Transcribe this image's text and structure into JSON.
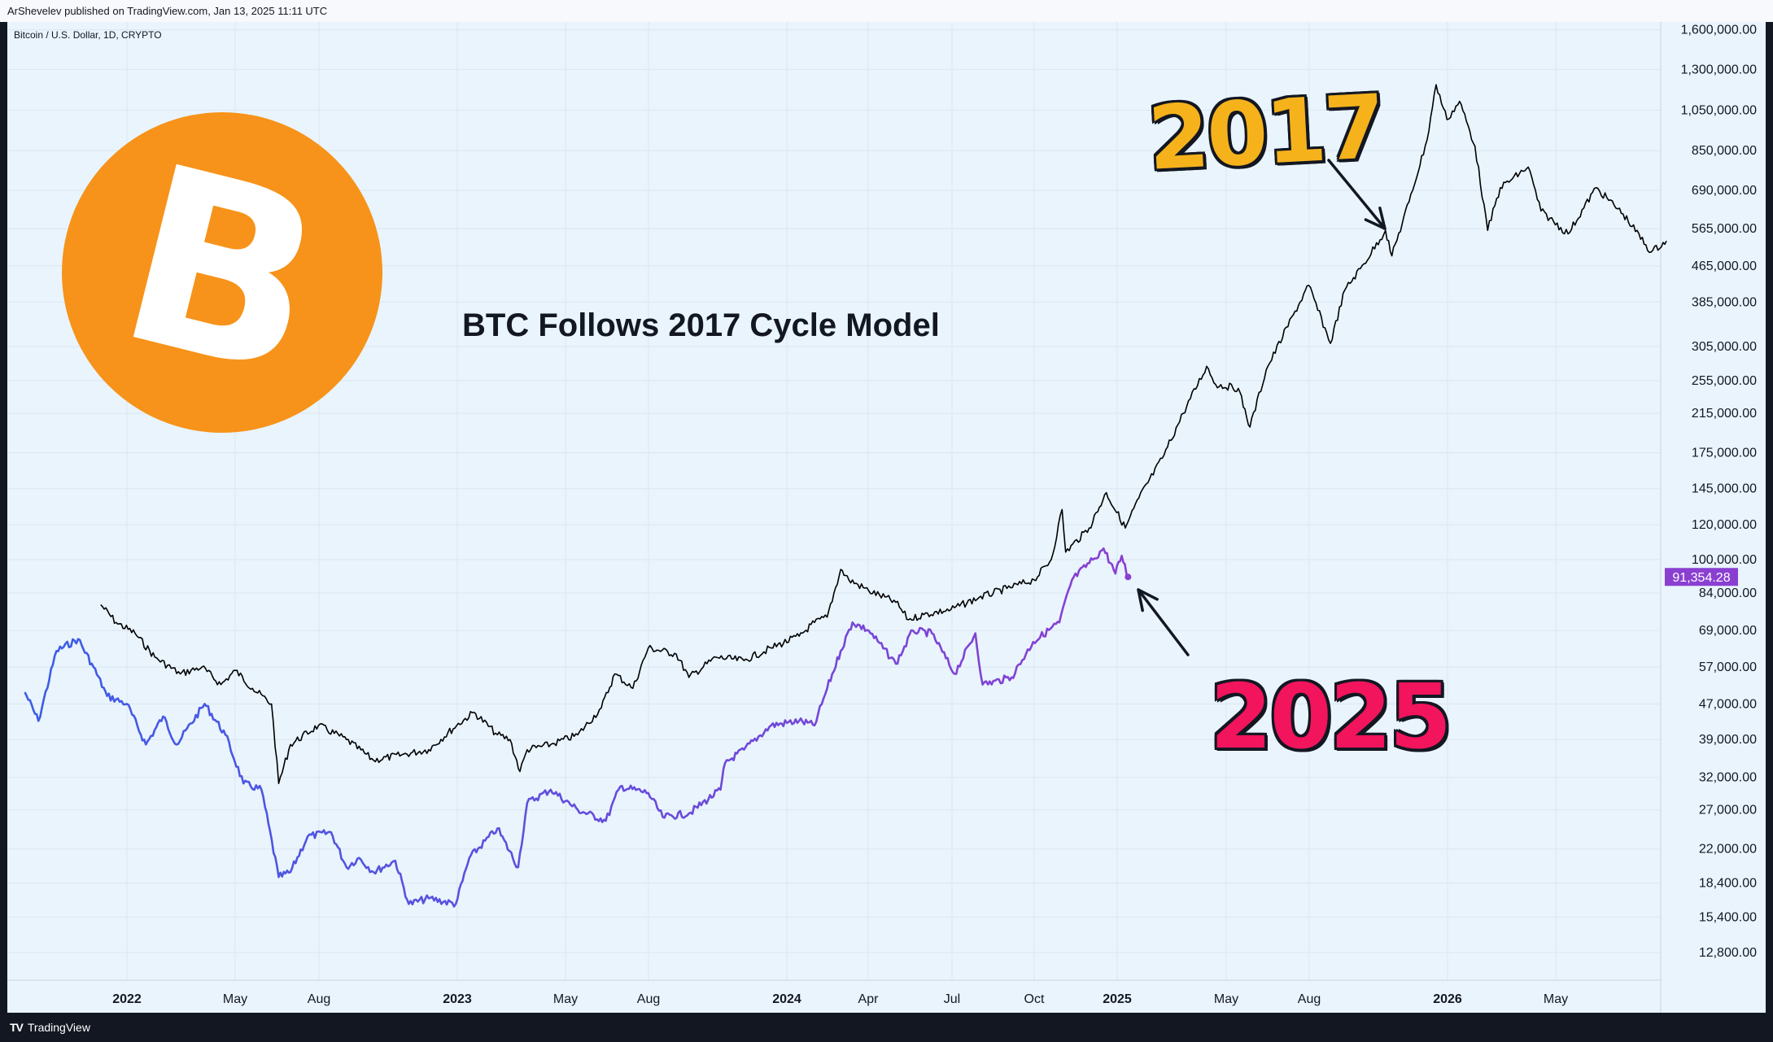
{
  "header": {
    "published_by": "ArShevelev published on TradingView.com, Jan 13, 2025 11:11 UTC"
  },
  "symbol": "Bitcoin / U.S. Dollar, 1D, CRYPTO",
  "footer": {
    "brand": "TradingView"
  },
  "annotations": {
    "title": "BTC Follows 2017 Cycle Model",
    "label_2017": "2017",
    "label_2025": "2025"
  },
  "colors": {
    "background": "#e9f4fd",
    "series_2017": "#000000",
    "series_2025_start": "#3d5ce6",
    "series_2025_end": "#8a3fd1",
    "price_badge": "#8a3fd1",
    "label_2017": "#f5b21b",
    "label_2025": "#f2145c",
    "btc_logo": "#f7931a"
  },
  "icons": {
    "logo": "bitcoin-logo-icon",
    "brand": "tradingview-logo-icon"
  },
  "chart_data": {
    "type": "line",
    "scale": "log",
    "title": "BTC Follows 2017 Cycle Model",
    "y_ticks": [
      "1,600,000.00",
      "1,300,000.00",
      "1,050,000.00",
      "850,000.00",
      "690,000.00",
      "565,000.00",
      "465,000.00",
      "385,000.00",
      "305,000.00",
      "255,000.00",
      "215,000.00",
      "175,000.00",
      "145,000.00",
      "120,000.00",
      "100,000.00",
      "84,000.00",
      "69,000.00",
      "57,000.00",
      "47,000.00",
      "39,000.00",
      "32,000.00",
      "27,000.00",
      "22,000.00",
      "18,400.00",
      "15,400.00",
      "12,800.00"
    ],
    "x_ticks": [
      {
        "label": "2022",
        "year": true
      },
      {
        "label": "May",
        "year": false
      },
      {
        "label": "Aug",
        "year": false
      },
      {
        "label": "2023",
        "year": true
      },
      {
        "label": "May",
        "year": false
      },
      {
        "label": "Aug",
        "year": false
      },
      {
        "label": "2024",
        "year": true
      },
      {
        "label": "Apr",
        "year": false
      },
      {
        "label": "Jul",
        "year": false
      },
      {
        "label": "Oct",
        "year": false
      },
      {
        "label": "2025",
        "year": true
      },
      {
        "label": "May",
        "year": false
      },
      {
        "label": "Aug",
        "year": false
      },
      {
        "label": "2026",
        "year": true
      },
      {
        "label": "May",
        "year": false
      }
    ],
    "last_price": "91,354.28",
    "series": [
      {
        "name": "2017",
        "points": [
          [
            "2021-12-03",
            79000
          ],
          [
            "2021-12-20",
            72000
          ],
          [
            "2022-01-10",
            68000
          ],
          [
            "2022-02-01",
            60000
          ],
          [
            "2022-03-01",
            55000
          ],
          [
            "2022-03-25",
            57000
          ],
          [
            "2022-04-15",
            52000
          ],
          [
            "2022-05-01",
            56000
          ],
          [
            "2022-05-20",
            51000
          ],
          [
            "2022-06-10",
            47000
          ],
          [
            "2022-06-18",
            31000
          ],
          [
            "2022-07-01",
            38000
          ],
          [
            "2022-08-01",
            42000
          ],
          [
            "2022-09-01",
            39000
          ],
          [
            "2022-10-01",
            35000
          ],
          [
            "2022-11-01",
            36000
          ],
          [
            "2022-12-01",
            37000
          ],
          [
            "2023-01-01",
            42000
          ],
          [
            "2023-01-20",
            45000
          ],
          [
            "2023-02-15",
            40000
          ],
          [
            "2023-03-01",
            39000
          ],
          [
            "2023-03-12",
            33000
          ],
          [
            "2023-03-20",
            37000
          ],
          [
            "2023-04-15",
            38000
          ],
          [
            "2023-05-15",
            40000
          ],
          [
            "2023-06-10",
            46000
          ],
          [
            "2023-06-25",
            55000
          ],
          [
            "2023-07-15",
            51000
          ],
          [
            "2023-08-01",
            63000
          ],
          [
            "2023-09-01",
            61000
          ],
          [
            "2023-09-15",
            54000
          ],
          [
            "2023-10-15",
            60000
          ],
          [
            "2023-11-15",
            59000
          ],
          [
            "2023-12-15",
            63000
          ],
          [
            "2024-01-15",
            67000
          ],
          [
            "2024-02-01",
            72000
          ],
          [
            "2024-02-15",
            74000
          ],
          [
            "2024-03-01",
            95000
          ],
          [
            "2024-03-10",
            90000
          ],
          [
            "2024-04-01",
            85000
          ],
          [
            "2024-05-01",
            80000
          ],
          [
            "2024-05-15",
            73000
          ],
          [
            "2024-06-01",
            75000
          ],
          [
            "2024-07-01",
            77000
          ],
          [
            "2024-08-01",
            82000
          ],
          [
            "2024-09-01",
            86000
          ],
          [
            "2024-10-01",
            90000
          ],
          [
            "2024-10-20",
            100000
          ],
          [
            "2024-11-01",
            130000
          ],
          [
            "2024-11-05",
            104000
          ],
          [
            "2024-12-01",
            118000
          ],
          [
            "2024-12-20",
            142000
          ],
          [
            "2025-01-10",
            118000
          ],
          [
            "2025-01-25",
            138000
          ],
          [
            "2025-02-20",
            170000
          ],
          [
            "2025-03-15",
            215000
          ],
          [
            "2025-04-10",
            275000
          ],
          [
            "2025-04-20",
            250000
          ],
          [
            "2025-05-15",
            245000
          ],
          [
            "2025-05-28",
            200000
          ],
          [
            "2025-06-15",
            270000
          ],
          [
            "2025-07-15",
            360000
          ],
          [
            "2025-08-01",
            420000
          ],
          [
            "2025-08-25",
            310000
          ],
          [
            "2025-09-10",
            410000
          ],
          [
            "2025-10-01",
            470000
          ],
          [
            "2025-10-25",
            560000
          ],
          [
            "2025-11-01",
            490000
          ],
          [
            "2025-11-20",
            650000
          ],
          [
            "2025-12-10",
            900000
          ],
          [
            "2025-12-20",
            1200000
          ],
          [
            "2026-01-01",
            1000000
          ],
          [
            "2026-01-15",
            1100000
          ],
          [
            "2026-02-01",
            870000
          ],
          [
            "2026-02-15",
            560000
          ],
          [
            "2026-03-01",
            700000
          ],
          [
            "2026-04-01",
            780000
          ],
          [
            "2026-04-15",
            620000
          ],
          [
            "2026-05-15",
            550000
          ],
          [
            "2026-06-15",
            700000
          ],
          [
            "2026-07-15",
            610000
          ],
          [
            "2026-08-15",
            500000
          ],
          [
            "2026-09-01",
            530000
          ]
        ]
      },
      {
        "name": "2025",
        "points": [
          [
            "2021-09-10",
            50000
          ],
          [
            "2021-09-25",
            43000
          ],
          [
            "2021-10-15",
            62000
          ],
          [
            "2021-11-08",
            66000
          ],
          [
            "2021-11-25",
            57000
          ],
          [
            "2021-12-10",
            49000
          ],
          [
            "2022-01-01",
            47000
          ],
          [
            "2022-01-22",
            38000
          ],
          [
            "2022-02-10",
            44000
          ],
          [
            "2022-02-25",
            38000
          ],
          [
            "2022-03-28",
            47000
          ],
          [
            "2022-04-20",
            40000
          ],
          [
            "2022-05-10",
            31000
          ],
          [
            "2022-05-30",
            30000
          ],
          [
            "2022-06-18",
            19000
          ],
          [
            "2022-07-01",
            19500
          ],
          [
            "2022-07-20",
            23500
          ],
          [
            "2022-08-15",
            24000
          ],
          [
            "2022-09-01",
            20000
          ],
          [
            "2022-09-15",
            21000
          ],
          [
            "2022-10-01",
            19500
          ],
          [
            "2022-10-25",
            20700
          ],
          [
            "2022-11-09",
            16500
          ],
          [
            "2022-12-01",
            17000
          ],
          [
            "2022-12-31",
            16500
          ],
          [
            "2023-01-15",
            21000
          ],
          [
            "2023-02-15",
            24500
          ],
          [
            "2023-03-10",
            20000
          ],
          [
            "2023-03-20",
            28000
          ],
          [
            "2023-04-15",
            30000
          ],
          [
            "2023-05-15",
            27000
          ],
          [
            "2023-06-15",
            25500
          ],
          [
            "2023-07-01",
            30500
          ],
          [
            "2023-08-01",
            29500
          ],
          [
            "2023-08-17",
            26000
          ],
          [
            "2023-09-15",
            26500
          ],
          [
            "2023-10-20",
            30000
          ],
          [
            "2023-10-25",
            34500
          ],
          [
            "2023-11-15",
            37000
          ],
          [
            "2023-12-15",
            42000
          ],
          [
            "2024-01-15",
            43000
          ],
          [
            "2024-02-01",
            42000
          ],
          [
            "2024-02-15",
            51000
          ],
          [
            "2024-03-01",
            62000
          ],
          [
            "2024-03-14",
            72000
          ],
          [
            "2024-04-01",
            69000
          ],
          [
            "2024-05-01",
            58000
          ],
          [
            "2024-05-20",
            69000
          ],
          [
            "2024-06-10",
            68000
          ],
          [
            "2024-07-05",
            55000
          ],
          [
            "2024-07-28",
            68000
          ],
          [
            "2024-08-05",
            52000
          ],
          [
            "2024-09-06",
            54000
          ],
          [
            "2024-09-30",
            65000
          ],
          [
            "2024-10-29",
            72000
          ],
          [
            "2024-11-12",
            90000
          ],
          [
            "2024-12-05",
            100000
          ],
          [
            "2024-12-17",
            106000
          ],
          [
            "2024-12-30",
            93000
          ],
          [
            "2025-01-06",
            102000
          ],
          [
            "2025-01-13",
            91354
          ]
        ]
      }
    ]
  }
}
